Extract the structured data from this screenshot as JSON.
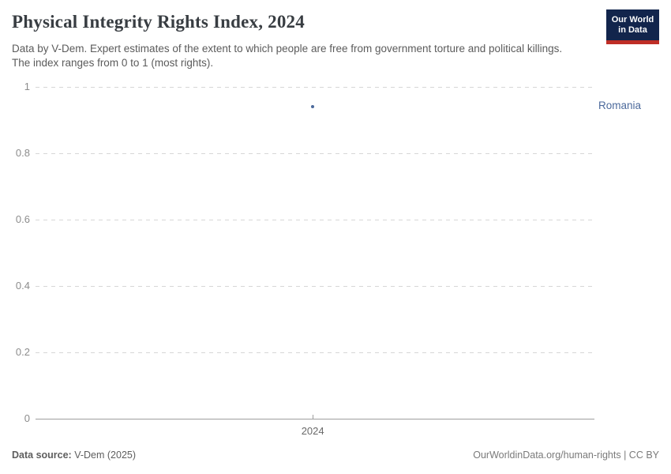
{
  "header": {
    "title": "Physical Integrity Rights Index, 2024",
    "subtitle": "Data by V-Dem. Expert estimates of the extent to which people are free from government torture and political killings. The index ranges from 0 to 1 (most rights).",
    "logo": {
      "line1": "Our World",
      "line2": "in Data",
      "bg_color": "#12254c",
      "accent_color": "#bf2e26"
    }
  },
  "chart_data": {
    "type": "scatter",
    "title": "Physical Integrity Rights Index, 2024",
    "series": [
      {
        "name": "Romania",
        "color": "#4c6a9c",
        "points": [
          {
            "x": 2024,
            "y": 0.94
          }
        ]
      }
    ],
    "xlabel": "",
    "ylabel": "",
    "xticks": [
      "2024"
    ],
    "yticks": [
      0,
      0.2,
      0.4,
      0.6,
      0.8,
      1
    ],
    "ylim": [
      0,
      1
    ],
    "grid": "horizontal-dashed",
    "legend_position": "right-of-point",
    "colors": {
      "gridline": "#d7d7d7",
      "axis": "#9e9e9e",
      "tick_label": "#8c8c8c"
    }
  },
  "footer": {
    "source_label": "Data source:",
    "source_value": " V-Dem (2025)",
    "credit": "OurWorldinData.org/human-rights | CC BY"
  }
}
